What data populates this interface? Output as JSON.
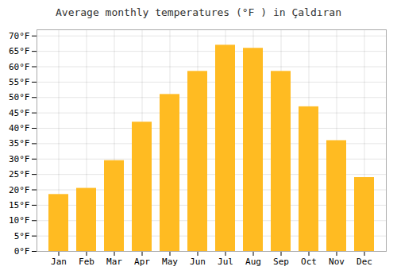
{
  "chart_data": {
    "type": "bar",
    "title": "Average monthly temperatures (°F ) in Çaldıran",
    "categories": [
      "Jan",
      "Feb",
      "Mar",
      "Apr",
      "May",
      "Jun",
      "Jul",
      "Aug",
      "Sep",
      "Oct",
      "Nov",
      "Dec"
    ],
    "values": [
      18.5,
      20.5,
      29.5,
      42,
      51,
      58.5,
      67,
      66,
      58.5,
      47,
      36,
      24
    ],
    "color": "#FFBB22",
    "ylim": [
      0,
      72
    ],
    "yticks": [
      {
        "value": 0,
        "label": "0°F"
      },
      {
        "value": 5,
        "label": "5°F"
      },
      {
        "value": 10,
        "label": "10°F"
      },
      {
        "value": 15,
        "label": "15°F"
      },
      {
        "value": 20,
        "label": "20°F"
      },
      {
        "value": 25,
        "label": "25°F"
      },
      {
        "value": 30,
        "label": "30°F"
      },
      {
        "value": 35,
        "label": "35°F"
      },
      {
        "value": 40,
        "label": "40°F"
      },
      {
        "value": 45,
        "label": "45°F"
      },
      {
        "value": 50,
        "label": "50°F"
      },
      {
        "value": 55,
        "label": "55°F"
      },
      {
        "value": 60,
        "label": "60°F"
      },
      {
        "value": 65,
        "label": "65°F"
      },
      {
        "value": 70,
        "label": "70°F"
      }
    ],
    "grid": true
  }
}
